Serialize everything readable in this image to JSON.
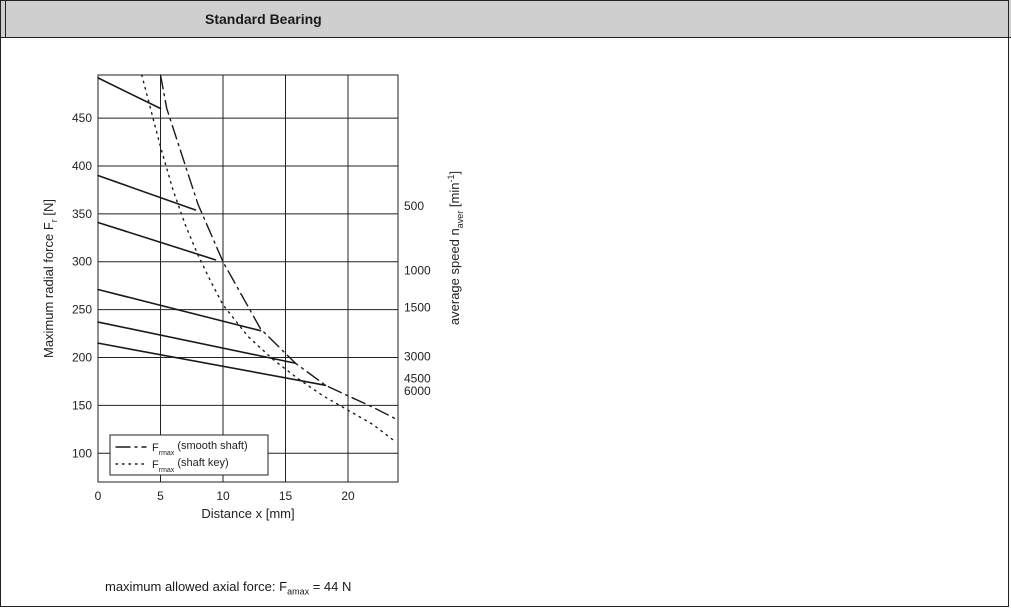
{
  "header": {
    "title": "Standard Bearing"
  },
  "note": {
    "prefix": "maximum allowed axial force: F",
    "sub": "amax",
    "suffix": " =  44 N"
  },
  "chart_data": {
    "type": "line",
    "title": "",
    "xlabel": "Distance x [mm]",
    "ylabel": "Maximum radial force F",
    "ylabel_sub": "r",
    "ylabel_unit": " [N]",
    "y2label": "average speed n",
    "y2label_sub": "aver",
    "y2label_unit": " [min",
    "y2label_sup": "-1",
    "y2label_end": "]",
    "xlim": [
      0,
      24
    ],
    "ylim": [
      70,
      495
    ],
    "xticks": [
      0,
      5,
      10,
      15,
      20
    ],
    "yticks": [
      100,
      150,
      200,
      250,
      300,
      350,
      400,
      450
    ],
    "grid": true,
    "speed_labels": [
      {
        "text": "500",
        "y": 358
      },
      {
        "text": "1000",
        "y": 291
      },
      {
        "text": "1500",
        "y": 252
      },
      {
        "text": "3000",
        "y": 201
      },
      {
        "text": "4500",
        "y": 178
      },
      {
        "text": "6000",
        "y": 165
      }
    ],
    "series": [
      {
        "name": "500 (upper)",
        "style": "solid",
        "x": [
          0,
          5.0
        ],
        "y": [
          492,
          460
        ]
      },
      {
        "name": "500",
        "style": "solid",
        "x": [
          0,
          7.8
        ],
        "y": [
          390,
          354
        ]
      },
      {
        "name": "1000",
        "style": "solid",
        "x": [
          0,
          9.4
        ],
        "y": [
          341,
          302
        ]
      },
      {
        "name": "1500",
        "style": "solid",
        "x": [
          0,
          13.0
        ],
        "y": [
          271,
          228
        ]
      },
      {
        "name": "3000",
        "style": "solid",
        "x": [
          0,
          15.8
        ],
        "y": [
          237,
          194
        ]
      },
      {
        "name": "4500",
        "style": "solid",
        "x": [
          0,
          18.2
        ],
        "y": [
          215,
          171
        ]
      },
      {
        "name": "smooth shaft",
        "style": "dashdot",
        "x": [
          5.0,
          5.5,
          6.5,
          8.0,
          10.0,
          13.0,
          15.8,
          18.2,
          20.0,
          22.0,
          23.8
        ],
        "y": [
          495,
          460,
          420,
          360,
          300,
          230,
          194,
          171,
          160,
          148,
          136
        ]
      },
      {
        "name": "shaft key",
        "style": "dotted",
        "x": [
          3.5,
          4.0,
          5.0,
          6.0,
          7.0,
          8.0,
          9.0,
          10.0,
          12.0,
          14.0,
          16.0,
          18.0,
          20.0,
          22.0,
          23.8
        ],
        "y": [
          495,
          470,
          420,
          375,
          338,
          307,
          280,
          255,
          222,
          198,
          178,
          160,
          145,
          130,
          112
        ]
      }
    ],
    "legend": {
      "position": "bottom-left",
      "entries": [
        {
          "symbol": "dashdot",
          "label_main": "F",
          "label_sub": "rmax",
          "label_rest": " (smooth shaft)"
        },
        {
          "symbol": "dotted",
          "label_main": "F",
          "label_sub": "rmax",
          "label_rest": " (shaft key)"
        }
      ]
    }
  }
}
